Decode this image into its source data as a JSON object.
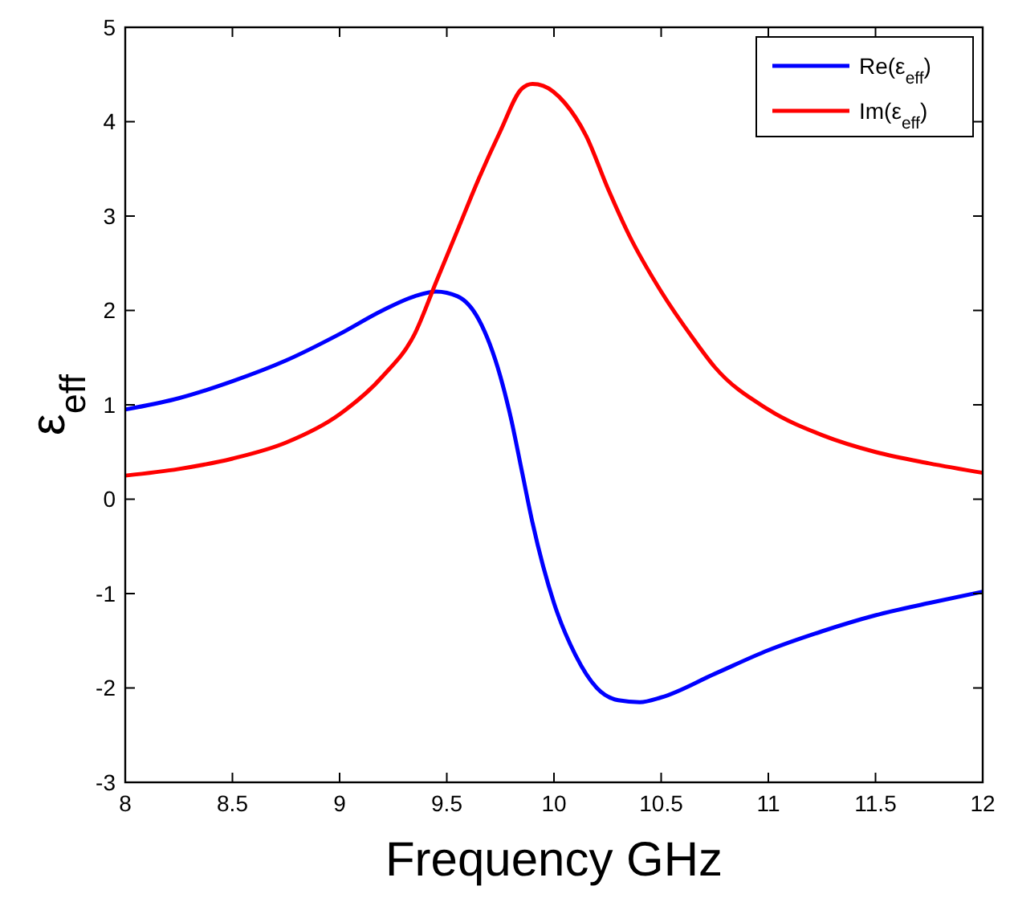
{
  "chart_data": {
    "type": "line",
    "xlabel": "Frequency GHz",
    "ylabel": "ε$_{eff}$",
    "xlim": [
      8,
      12
    ],
    "ylim": [
      -3,
      5
    ],
    "xticks": [
      8,
      8.5,
      9,
      9.5,
      10,
      10.5,
      11,
      11.5,
      12
    ],
    "yticks": [
      -3,
      -2,
      -1,
      0,
      1,
      2,
      3,
      4,
      5
    ],
    "grid": false,
    "legend": "top right",
    "series": [
      {
        "name": "Re(ε$_{eff}$)",
        "color": "#0000ff",
        "x": [
          8,
          8.25,
          8.5,
          8.75,
          9,
          9.2,
          9.35,
          9.45,
          9.55,
          9.65,
          9.75,
          9.8,
          9.85,
          9.9,
          10,
          10.1,
          10.2,
          10.3,
          10.4,
          10.5,
          10.75,
          11,
          11.25,
          11.5,
          11.75,
          12
        ],
        "values": [
          0.95,
          1.07,
          1.25,
          1.47,
          1.75,
          2.0,
          2.15,
          2.2,
          2.15,
          1.9,
          1.3,
          0.85,
          0.3,
          -0.25,
          -1.1,
          -1.65,
          -2.0,
          -2.13,
          -2.15,
          -2.1,
          -1.85,
          -1.6,
          -1.4,
          -1.23,
          -1.1,
          -0.98
        ]
      },
      {
        "name": "Im(ε$_{eff}$)",
        "color": "#ff0000",
        "x": [
          8,
          8.25,
          8.5,
          8.75,
          9,
          9.2,
          9.35,
          9.45,
          9.55,
          9.65,
          9.75,
          9.85,
          9.9,
          9.95,
          10.05,
          10.15,
          10.25,
          10.35,
          10.5,
          10.65,
          10.75,
          11,
          11.25,
          11.5,
          11.75,
          12
        ],
        "values": [
          0.25,
          0.32,
          0.43,
          0.6,
          0.9,
          1.3,
          1.75,
          2.3,
          2.85,
          3.4,
          3.9,
          4.35,
          4.4,
          4.38,
          4.2,
          3.85,
          3.3,
          2.8,
          2.2,
          1.7,
          1.4,
          0.95,
          0.68,
          0.5,
          0.38,
          0.28
        ]
      }
    ]
  }
}
